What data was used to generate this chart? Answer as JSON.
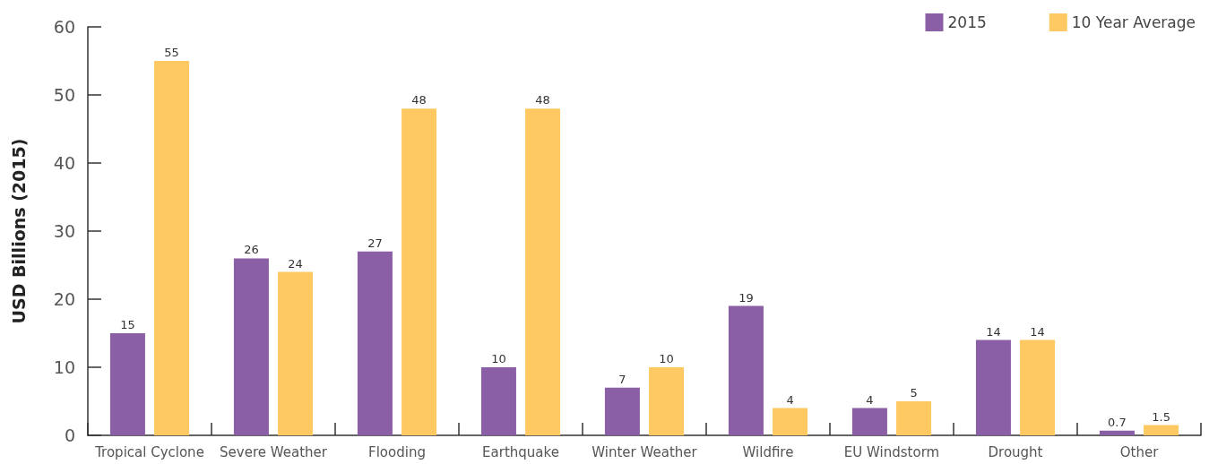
{
  "chart_data": {
    "type": "bar",
    "ylabel": "USD Billions (2015)",
    "categories": [
      "Tropical Cyclone",
      "Severe Weather",
      "Flooding",
      "Earthquake",
      "Winter Weather",
      "Wildfire",
      "EU Windstorm",
      "Drought",
      "Other"
    ],
    "series": [
      {
        "name": "2015",
        "color": "#8b5fa5",
        "values": [
          15,
          26,
          27,
          10,
          7,
          19,
          4,
          14,
          0.7
        ]
      },
      {
        "name": "10 Year Average",
        "color": "#fec962",
        "values": [
          55,
          24,
          48,
          48,
          10,
          4,
          5,
          14,
          1.5
        ]
      }
    ],
    "ylim": [
      0,
      60
    ],
    "yticks": [
      0,
      10,
      20,
      30,
      40,
      50,
      60
    ],
    "grid": false,
    "legend": "top right",
    "data_labels": true
  }
}
